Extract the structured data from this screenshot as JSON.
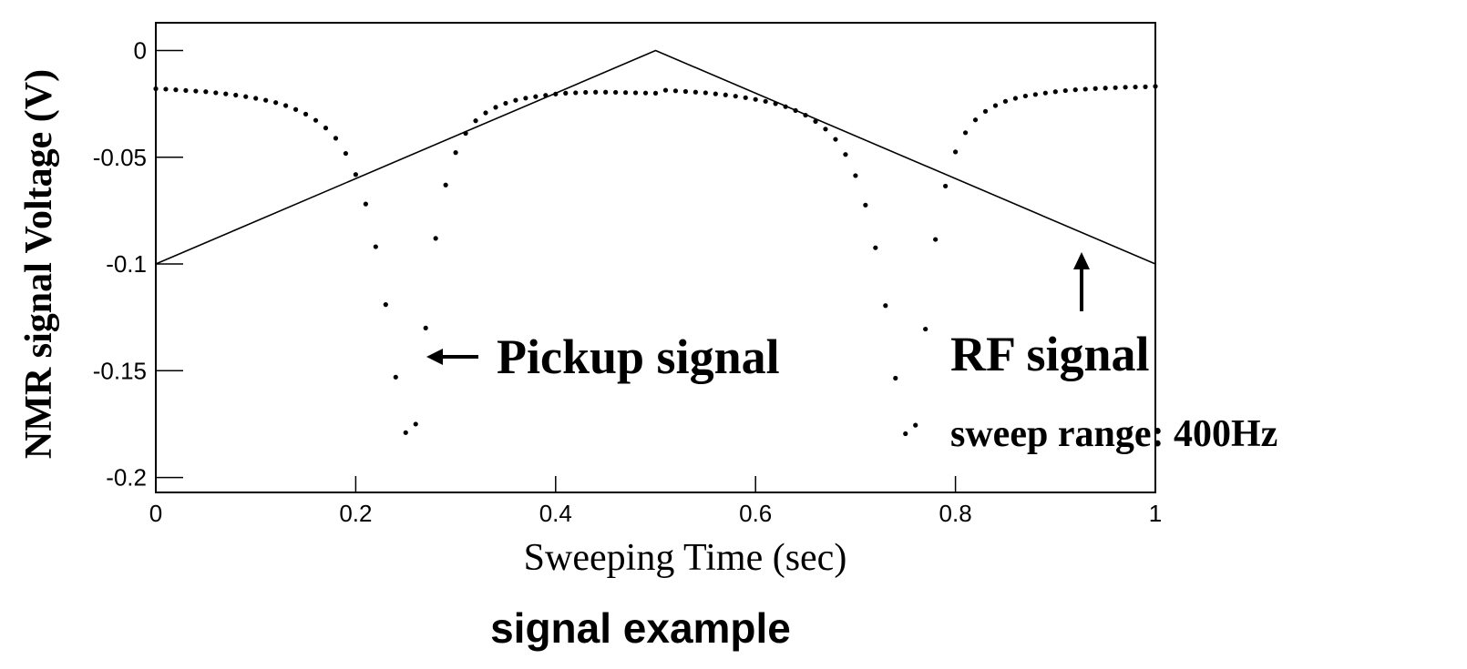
{
  "chart_data": {
    "type": "scatter",
    "title": "signal example",
    "xlabel": "Sweeping Time (sec)",
    "ylabel": "NMR signal Voltage (V)",
    "xlim": [
      0,
      1
    ],
    "ylim": [
      -0.207,
      0.013
    ],
    "xticks": [
      0,
      0.2,
      0.4,
      0.6,
      0.8,
      1
    ],
    "yticks": [
      0,
      -0.05,
      -0.1,
      -0.15,
      -0.2
    ],
    "grid": false,
    "annotations": [
      {
        "text": "Pickup signal"
      },
      {
        "text": "RF signal"
      },
      {
        "text": "sweep range: 400Hz"
      }
    ],
    "series": [
      {
        "mode": "markers",
        "color": "#000000",
        "x": [
          0,
          0.01,
          0.02,
          0.03,
          0.04,
          0.05,
          0.06,
          0.07,
          0.08,
          0.09,
          0.1,
          0.11,
          0.12,
          0.13,
          0.14,
          0.15,
          0.16,
          0.17,
          0.18,
          0.19,
          0.2,
          0.21,
          0.22,
          0.23,
          0.24,
          0.25,
          0.26,
          0.27,
          0.28,
          0.29,
          0.3,
          0.31,
          0.32,
          0.33,
          0.34,
          0.35,
          0.36,
          0.37,
          0.38,
          0.39,
          0.4,
          0.41,
          0.42,
          0.43,
          0.44,
          0.45,
          0.46,
          0.47,
          0.48,
          0.49,
          0.5,
          0.51,
          0.52,
          0.53,
          0.54,
          0.55,
          0.56,
          0.57,
          0.58,
          0.59,
          0.6,
          0.61,
          0.62,
          0.63,
          0.64,
          0.65,
          0.66,
          0.67,
          0.68,
          0.69,
          0.7,
          0.71,
          0.72,
          0.73,
          0.74,
          0.75,
          0.76,
          0.77,
          0.78,
          0.79,
          0.8,
          0.81,
          0.82,
          0.83,
          0.84,
          0.85,
          0.86,
          0.87,
          0.88,
          0.89,
          0.9,
          0.91,
          0.92,
          0.93,
          0.94,
          0.95,
          0.96,
          0.97,
          0.98,
          0.99,
          1
        ],
        "values": [
          -0.0179,
          -0.0181,
          -0.0184,
          -0.0187,
          -0.019,
          -0.0193,
          -0.0198,
          -0.0203,
          -0.0209,
          -0.0216,
          -0.0224,
          -0.0233,
          -0.0244,
          -0.0258,
          -0.0276,
          -0.0298,
          -0.0327,
          -0.0363,
          -0.0411,
          -0.0482,
          -0.0581,
          -0.0719,
          -0.0919,
          -0.119,
          -0.153,
          -0.179,
          -0.175,
          -0.13,
          -0.088,
          -0.063,
          -0.0478,
          -0.0388,
          -0.0329,
          -0.0292,
          -0.0266,
          -0.0247,
          -0.0233,
          -0.0223,
          -0.0216,
          -0.021,
          -0.0204,
          -0.02,
          -0.0198,
          -0.0196,
          -0.0195,
          -0.0195,
          -0.0196,
          -0.0197,
          -0.0198,
          -0.0199,
          -0.02,
          -0.0186,
          -0.0189,
          -0.0192,
          -0.0195,
          -0.0198,
          -0.0203,
          -0.0208,
          -0.0214,
          -0.0221,
          -0.0229,
          -0.0238,
          -0.0249,
          -0.0263,
          -0.0281,
          -0.0303,
          -0.0332,
          -0.0368,
          -0.0416,
          -0.0487,
          -0.0586,
          -0.0724,
          -0.0924,
          -0.1195,
          -0.1535,
          -0.1795,
          -0.1755,
          -0.1305,
          -0.0885,
          -0.0635,
          -0.0475,
          -0.0385,
          -0.0325,
          -0.0285,
          -0.0258,
          -0.0238,
          -0.0224,
          -0.0213,
          -0.0206,
          -0.0199,
          -0.0193,
          -0.0188,
          -0.0184,
          -0.0181,
          -0.0178,
          -0.0176,
          -0.0174,
          -0.0172,
          -0.0171,
          -0.017,
          -0.0168
        ]
      },
      {
        "mode": "line",
        "color": "#000000",
        "x": [
          0,
          0.5,
          1
        ],
        "values": [
          -0.1,
          0,
          -0.1
        ]
      }
    ]
  }
}
